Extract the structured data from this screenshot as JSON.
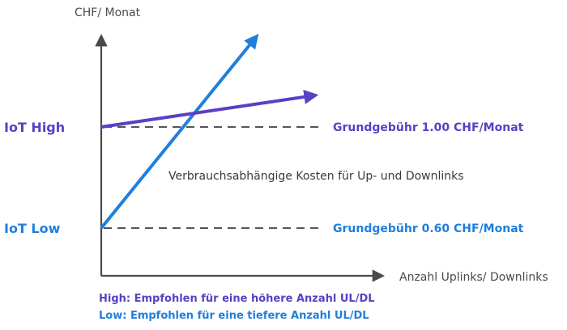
{
  "axes": {
    "y_label": "CHF/ Monat",
    "x_label": "Anzahl Uplinks/ Downlinks"
  },
  "plans": {
    "high": {
      "label": "IoT High",
      "fee_label": "Grundgebühr 1.00 CHF/Monat"
    },
    "low": {
      "label": "IoT Low",
      "fee_label": "Grundgebühr 0.60 CHF/Monat"
    }
  },
  "usage_note": "Verbrauchsabhängige Kosten für Up- und Downlinks",
  "footnotes": {
    "high": "High: Empfohlen für eine höhere Anzahl UL/DL",
    "low": "Low: Empfohlen für eine tiefere Anzahl UL/DL"
  },
  "colors": {
    "high": "#5b3fc4",
    "low": "#1f7fdc",
    "axis": "#4a4a4a",
    "dashed": "#555555"
  }
}
